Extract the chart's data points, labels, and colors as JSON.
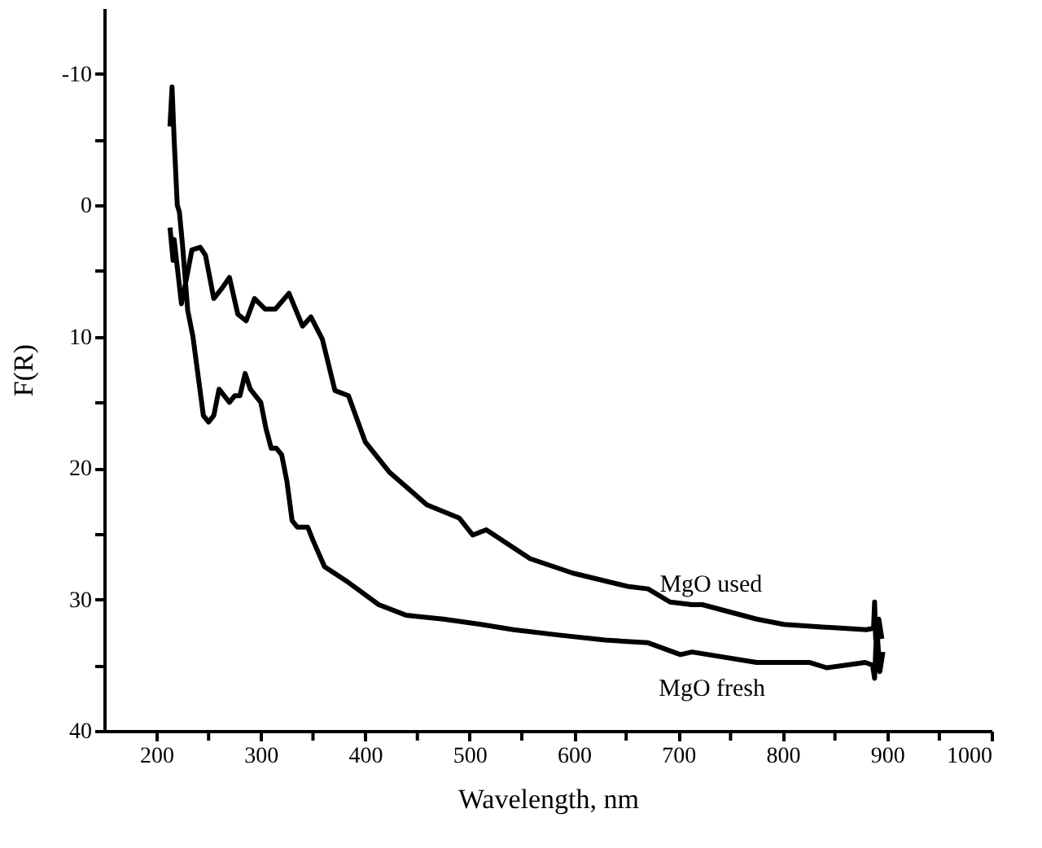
{
  "chart_data": {
    "type": "line",
    "xlabel": "Wavelength, nm",
    "ylabel": "F(R)",
    "xlim": [
      150,
      1000
    ],
    "ylim": [
      40,
      -15
    ],
    "xticks": [
      200,
      {
        "value": 250,
        "label": null
      },
      300,
      {
        "value": 350,
        "label": null
      },
      400,
      {
        "value": 450,
        "label": null
      },
      500,
      {
        "value": 550,
        "label": null
      },
      600,
      {
        "value": 650,
        "label": null
      },
      700,
      {
        "value": 750,
        "label": null
      },
      800,
      {
        "value": 850,
        "label": null
      },
      900,
      {
        "value": 950,
        "label": null
      },
      1000
    ],
    "yticks": [
      -10,
      {
        "value": -5,
        "label": null
      },
      0,
      {
        "value": 5,
        "label": null
      },
      10,
      {
        "value": 15,
        "label": null
      },
      20,
      {
        "value": 25,
        "label": null
      },
      30,
      {
        "value": 35,
        "label": null
      },
      40
    ],
    "grid": false,
    "marker": "none",
    "line_style": "solid",
    "series": [
      {
        "name": "MgO used",
        "color": "#000000",
        "x": [
          213,
          216,
          217,
          224,
          229,
          234,
          242,
          247,
          255,
          263,
          270,
          278,
          286,
          294,
          304,
          314,
          327,
          340,
          348,
          359,
          371,
          384,
          400,
          423,
          459,
          490,
          503,
          516,
          558,
          599,
          651,
          671,
          692,
          713,
          723,
          775,
          801,
          838,
          880,
          887,
          888,
          889,
          892,
          895
        ],
        "values": [
          1.7,
          4.2,
          2.6,
          7.5,
          5.5,
          3.4,
          3.2,
          3.8,
          7.1,
          6.3,
          5.5,
          8.3,
          8.8,
          7.1,
          7.9,
          7.9,
          6.7,
          9.2,
          8.5,
          10.2,
          14.1,
          14.5,
          18,
          20.3,
          22.8,
          23.8,
          25.1,
          24.7,
          26.9,
          28,
          29,
          29.2,
          30.2,
          30.4,
          30.4,
          31.5,
          31.9,
          32.1,
          32.3,
          32.2,
          30.2,
          33,
          31.5,
          33
        ]
      },
      {
        "name": "MgO fresh",
        "color": "#000000",
        "x": [
          213,
          215,
          217,
          220,
          222,
          225,
          230,
          235,
          240,
          245,
          250,
          255,
          260,
          265,
          270,
          275,
          280,
          285,
          290,
          295,
          300,
          305,
          310,
          315,
          320,
          325,
          330,
          335,
          340,
          345,
          350,
          361,
          382,
          413,
          439,
          475,
          511,
          542,
          584,
          630,
          671,
          702,
          713,
          775,
          826,
          842,
          879,
          886,
          888,
          890,
          893,
          896
        ],
        "values": [
          -6,
          -9,
          -5,
          0,
          0.5,
          3,
          8,
          10,
          13,
          16,
          16.5,
          16,
          14,
          14.5,
          15,
          14.5,
          14.5,
          12.8,
          14,
          14.5,
          15,
          17,
          18.5,
          18.5,
          19,
          21,
          24,
          24.5,
          24.5,
          24.5,
          25.5,
          27.5,
          28.6,
          30.4,
          31.2,
          31.5,
          31.9,
          32.3,
          32.7,
          33.1,
          33.3,
          34.2,
          34,
          34.8,
          34.8,
          35.2,
          34.8,
          35,
          36,
          32,
          35.5,
          34
        ]
      }
    ]
  }
}
